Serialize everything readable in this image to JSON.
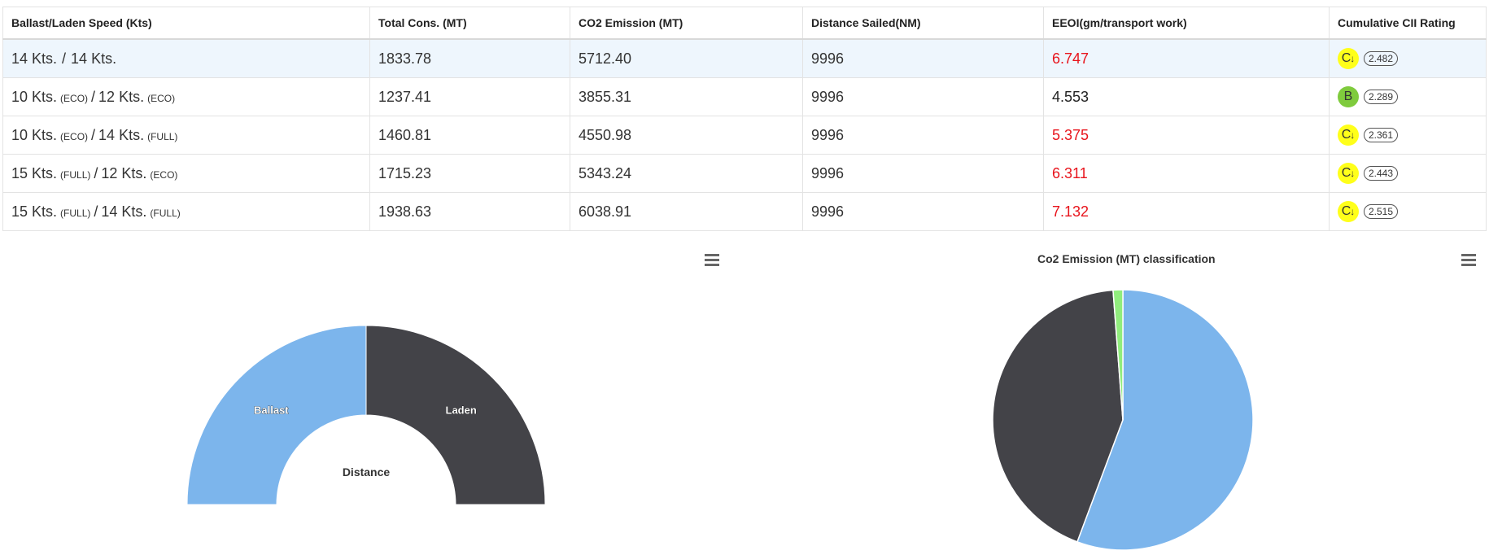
{
  "table": {
    "headers": [
      "Ballast/Laden Speed (Kts)",
      "Total Cons. (MT)",
      "CO2 Emission (MT)",
      "Distance Sailed(NM)",
      "EEOI(gm/transport work)",
      "Cumulative CII Rating"
    ],
    "rows": [
      {
        "ballast_speed": "14 Kts.",
        "ballast_mode": "",
        "sep": "/",
        "laden_speed": "14 Kts.",
        "laden_mode": "",
        "total_cons": "1833.78",
        "co2": "5712.40",
        "distance": "9996",
        "eeoi": "6.747",
        "eeoi_color": "red",
        "rating": "C",
        "rating_arrow": "↓",
        "rating_value": "2.482"
      },
      {
        "ballast_speed": "10 Kts.",
        "ballast_mode": "(ECO)",
        "sep": "/",
        "laden_speed": "12 Kts.",
        "laden_mode": "(ECO)",
        "total_cons": "1237.41",
        "co2": "3855.31",
        "distance": "9996",
        "eeoi": "4.553",
        "eeoi_color": "black",
        "rating": "B",
        "rating_arrow": "",
        "rating_value": "2.289"
      },
      {
        "ballast_speed": "10 Kts.",
        "ballast_mode": "(ECO)",
        "sep": "/",
        "laden_speed": "14 Kts.",
        "laden_mode": "(FULL)",
        "total_cons": "1460.81",
        "co2": "4550.98",
        "distance": "9996",
        "eeoi": "5.375",
        "eeoi_color": "red",
        "rating": "C",
        "rating_arrow": "↓",
        "rating_value": "2.361"
      },
      {
        "ballast_speed": "15 Kts.",
        "ballast_mode": "(FULL)",
        "sep": "/",
        "laden_speed": "12 Kts.",
        "laden_mode": "(ECO)",
        "total_cons": "1715.23",
        "co2": "5343.24",
        "distance": "9996",
        "eeoi": "6.311",
        "eeoi_color": "red",
        "rating": "C",
        "rating_arrow": "↓",
        "rating_value": "2.443"
      },
      {
        "ballast_speed": "15 Kts.",
        "ballast_mode": "(FULL)",
        "sep": "/",
        "laden_speed": "14 Kts.",
        "laden_mode": "(FULL)",
        "total_cons": "1938.63",
        "co2": "6038.91",
        "distance": "9996",
        "eeoi": "7.132",
        "eeoi_color": "red",
        "rating": "C",
        "rating_arrow": "↓",
        "rating_value": "2.515"
      }
    ]
  },
  "colors": {
    "ballast": "#7cb5ec",
    "laden": "#434348",
    "green": "#90ed7d",
    "eeoi_red": "#e8141c",
    "rating_c": "#ffff1a",
    "rating_b": "#7fcb3d"
  },
  "icons": {
    "chart1_menu": "hamburger-menu-icon",
    "chart2_menu": "hamburger-menu-icon"
  },
  "chart_data": [
    {
      "type": "pie",
      "variant": "semi-donut",
      "title": "",
      "center_label": "Distance",
      "slices": [
        {
          "name": "Ballast",
          "value": 50
        },
        {
          "name": "Laden",
          "value": 50
        }
      ]
    },
    {
      "type": "pie",
      "title": "Co2 Emission (MT) classification",
      "slices": [
        {
          "value": 55.7
        },
        {
          "value": 43.1
        },
        {
          "value": 1.2
        }
      ]
    }
  ]
}
